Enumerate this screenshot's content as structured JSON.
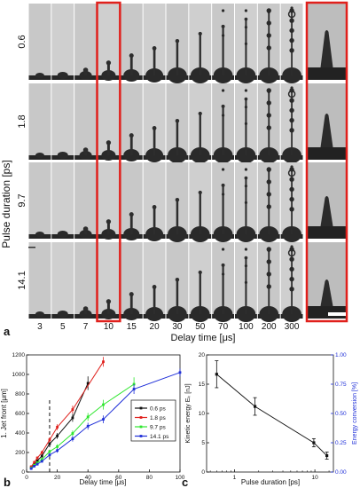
{
  "panel_a": {
    "panel_label": "a",
    "y_title": "Pulse duration [ps]",
    "row_labels": [
      "0.6",
      "1.8",
      "9.7",
      "14.1"
    ],
    "col_labels": [
      "3",
      "5",
      "7",
      "10",
      "15",
      "20",
      "30",
      "50",
      "70",
      "100",
      "200",
      "300"
    ],
    "x_title": "Delay time [μs]",
    "highlight_column": "10",
    "highlight_color": "#e0201c"
  },
  "chart_data": [
    {
      "panel_label": "b",
      "type": "scatter",
      "xlabel": "Delay time [μs]",
      "ylabel": "1. Jet front [μm]",
      "xlim": [
        0,
        100
      ],
      "ylim": [
        0,
        1200
      ],
      "xticks": [
        "0",
        "20",
        "40",
        "60",
        "80",
        "100"
      ],
      "yticks": [
        "0",
        "200",
        "400",
        "600",
        "800",
        "1000",
        "1200"
      ],
      "dashed_vline_x": 15,
      "legend_position": "center-right",
      "series": [
        {
          "name": "0.6 ps",
          "color": "#111111",
          "x": [
            3,
            5,
            7,
            10,
            15,
            20,
            30,
            40
          ],
          "y": [
            45,
            80,
            115,
            165,
            290,
            370,
            555,
            910
          ],
          "err": [
            10,
            12,
            15,
            20,
            25,
            30,
            40,
            70
          ]
        },
        {
          "name": "1.8 ps",
          "color": "#e0201c",
          "x": [
            3,
            5,
            7,
            10,
            15,
            20,
            30,
            50
          ],
          "y": [
            55,
            100,
            145,
            200,
            330,
            460,
            640,
            1130
          ],
          "err": [
            10,
            12,
            15,
            20,
            25,
            30,
            40,
            50
          ]
        },
        {
          "name": "9.7 ps",
          "color": "#2ee62e",
          "x": [
            3,
            5,
            7,
            10,
            15,
            20,
            30,
            40,
            50,
            70
          ],
          "y": [
            40,
            70,
            95,
            130,
            210,
            260,
            395,
            565,
            690,
            900
          ],
          "err": [
            8,
            10,
            12,
            15,
            20,
            25,
            30,
            40,
            50,
            70
          ]
        },
        {
          "name": "14.1 ps",
          "color": "#1f2fd8",
          "x": [
            3,
            5,
            7,
            10,
            15,
            20,
            30,
            40,
            50,
            70,
            100
          ],
          "y": [
            35,
            60,
            80,
            110,
            175,
            220,
            340,
            470,
            540,
            850,
            1020
          ],
          "err": [
            8,
            10,
            12,
            14,
            18,
            22,
            28,
            35,
            40,
            50,
            40
          ]
        }
      ]
    },
    {
      "panel_label": "c",
      "type": "line",
      "xlabel": "Pulse duration [ps]",
      "ylabel": "Kinetic energy Eₖ [nJ]",
      "ylabel_right": "Energy conversion [%]",
      "x_scale": "log",
      "xlim": [
        0.45,
        17
      ],
      "ylim": [
        0,
        20
      ],
      "ylim_right": [
        0,
        1.0
      ],
      "xticks": [
        "1",
        "10"
      ],
      "yticks": [
        "0",
        "5",
        "10",
        "15",
        "20"
      ],
      "yticks_right": [
        "0.00",
        "0.25",
        "0.50",
        "0.75",
        "1.00"
      ],
      "right_axis_color": "#1f2fd8",
      "series": [
        {
          "x": [
            0.6,
            1.8,
            9.7,
            14.1
          ],
          "y": [
            16.7,
            11.2,
            5.0,
            2.8
          ],
          "err": [
            2.3,
            1.5,
            0.7,
            0.6
          ]
        }
      ]
    }
  ]
}
